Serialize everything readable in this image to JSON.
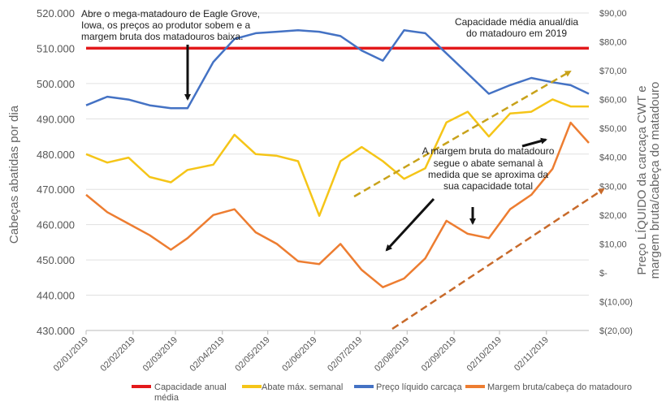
{
  "chart_data": {
    "type": "line",
    "title": "",
    "ylabel_left": "Cabeças abatidas por dia",
    "ylabel_right_lines": [
      "Preço LÍQUIDO da carcaça CWT e",
      "margem bruta/cabeça do matadouro"
    ],
    "ylim_left": [
      430000,
      520000
    ],
    "ylim_right": [
      -20,
      90
    ],
    "xlim": [
      "2019-01-02",
      "2019-11-30"
    ],
    "grid": true,
    "legend_placement": "bottom",
    "left_ticks": [
      "430.000",
      "440.000",
      "450.000",
      "460.000",
      "470.000",
      "480.000",
      "490.000",
      "500.000",
      "510.000",
      "520.000"
    ],
    "right_ticks": [
      "$(20,00)",
      "$(10,00)",
      "$-",
      "$10,00",
      "$20,00",
      "$30,00",
      "$40,00",
      "$50,00",
      "$60,00",
      "$70,00",
      "$80,00",
      "$90,00"
    ],
    "x_ticks": [
      {
        "date": "2019-01-02",
        "label": "02/01/2019"
      },
      {
        "date": "2019-02-02",
        "label": "02/02/2019"
      },
      {
        "date": "2019-03-02",
        "label": "02/03/2019"
      },
      {
        "date": "2019-04-02",
        "label": "02/04/2019"
      },
      {
        "date": "2019-05-02",
        "label": "02/05/2019"
      },
      {
        "date": "2019-06-02",
        "label": "02/06/2019"
      },
      {
        "date": "2019-07-02",
        "label": "02/07/2019"
      },
      {
        "date": "2019-08-02",
        "label": "02/08/2019"
      },
      {
        "date": "2019-09-02",
        "label": "02/09/2019"
      },
      {
        "date": "2019-10-02",
        "label": "02/10/2019"
      },
      {
        "date": "2019-11-02",
        "label": "02/11/2019"
      }
    ],
    "x": [
      "2019-01-02",
      "2019-01-16",
      "2019-01-30",
      "2019-02-13",
      "2019-02-27",
      "2019-03-10",
      "2019-03-27",
      "2019-04-10",
      "2019-04-24",
      "2019-05-08",
      "2019-05-22",
      "2019-06-05",
      "2019-06-19",
      "2019-07-03",
      "2019-07-17",
      "2019-07-31",
      "2019-08-14",
      "2019-08-28",
      "2019-09-11",
      "2019-09-25",
      "2019-10-09",
      "2019-10-23",
      "2019-11-06",
      "2019-11-18",
      "2019-11-30"
    ],
    "series": [
      {
        "name": "Capacidade anual média",
        "axis": "left",
        "color": "#e3191b",
        "values": [
          510000,
          510000,
          510000,
          510000,
          510000,
          510000,
          510000,
          510000,
          510000,
          510000,
          510000,
          510000,
          510000,
          510000,
          510000,
          510000,
          510000,
          510000,
          510000,
          510000,
          510000,
          510000,
          510000,
          510000,
          510000
        ]
      },
      {
        "name": "Abate máx. semanal",
        "axis": "left",
        "color": "#f5c518",
        "values": [
          480000,
          477600,
          479000,
          473500,
          472000,
          475500,
          477000,
          485500,
          480000,
          479500,
          478000,
          462500,
          478000,
          482000,
          478000,
          473000,
          476000,
          489000,
          492000,
          485000,
          491500,
          492000,
          495500,
          493500,
          493500
        ]
      },
      {
        "name": "Preço líquido carcaça",
        "axis": "right",
        "color": "#4472c4",
        "values": [
          58,
          61,
          60,
          58,
          57,
          57,
          73,
          81,
          83,
          83.5,
          84,
          83.5,
          82,
          77,
          73.5,
          84,
          83,
          76,
          69,
          62,
          65,
          67.5,
          66,
          65,
          62
        ]
      },
      {
        "name": "Margem bruta/cabeça do matadouro",
        "axis": "right",
        "color": "#ed7d31",
        "values": [
          27,
          21,
          17,
          13,
          8,
          12,
          20,
          22,
          14,
          10,
          4,
          3,
          10,
          1,
          -5,
          -2,
          5,
          18,
          13.5,
          12,
          22,
          27,
          36,
          52,
          45
        ]
      }
    ],
    "annotations": [
      {
        "text_lines": [
          "Abre o mega-matadouro de Eagle Grove,",
          "Iowa, os preços ao produtor sobem e a",
          "margem bruta dos matadouros baixa."
        ]
      },
      {
        "text_lines": [
          "Capacidade média anual/dia",
          "do matadouro em 2019"
        ]
      },
      {
        "text_lines": [
          "A margem bruta do matadouro",
          "segue o abate semanal à",
          "medida que se aproxima da",
          "sua capacidade total"
        ]
      }
    ]
  }
}
